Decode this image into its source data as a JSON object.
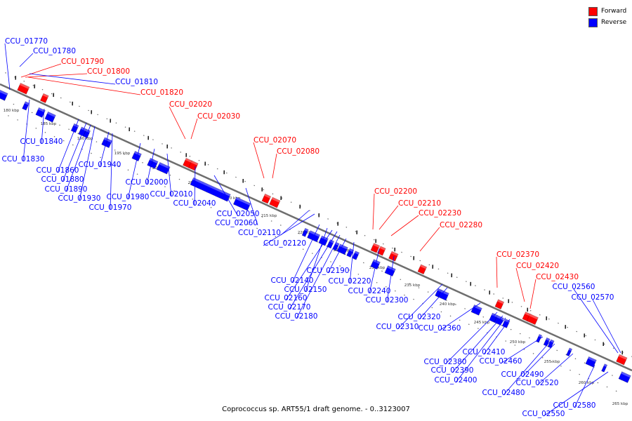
{
  "title": "Coprococcus sp. ART55/1 draft genome. - 0..3123007",
  "legend": [
    {
      "label": "Forward",
      "color": "#ff0000"
    },
    {
      "label": "Reverse",
      "color": "#0000ff"
    }
  ],
  "colors": {
    "forward": "#ff0000",
    "reverse": "#0000ff",
    "backbone": "#777777"
  },
  "scale_labels": [
    "180 kbp",
    "185 kbp",
    "190 kbp",
    "195 kbp",
    "200 kbp",
    "205 kbp",
    "210 kbp",
    "215 kbp",
    "220 kbp",
    "225 kbp",
    "230 kbp",
    "235 kbp",
    "240 kbp",
    "245 kbp",
    "250 kbp",
    "255 kbp",
    "260 kbp",
    "265 kbp"
  ],
  "forward_genes": [
    "CCU_01790",
    "CCU_01800",
    "CCU_01820",
    "CCU_02020",
    "CCU_02030",
    "CCU_02070",
    "CCU_02080",
    "CCU_02200",
    "CCU_02210",
    "CCU_02230",
    "CCU_02280",
    "CCU_02370",
    "CCU_02420",
    "CCU_02430"
  ],
  "reverse_genes": [
    "CCU_01770",
    "CCU_01780",
    "CCU_01810",
    "CCU_01830",
    "CCU_01840",
    "CCU_01860",
    "CCU_01880",
    "CCU_01890",
    "CCU_01930",
    "CCU_01940",
    "CCU_01970",
    "CCU_01980",
    "CCU_02000",
    "CCU_02010",
    "CCU_02040",
    "CCU_02050",
    "CCU_02060",
    "CCU_02110",
    "CCU_02120",
    "CCU_02140",
    "CCU_02150",
    "CCU_02160",
    "CCU_02170",
    "CCU_02180",
    "CCU_02190",
    "CCU_02220",
    "CCU_02240",
    "CCU_02300",
    "CCU_02310",
    "CCU_02320",
    "CCU_02360",
    "CCU_02380",
    "CCU_02390",
    "CCU_02400",
    "CCU_02410",
    "CCU_02460",
    "CCU_02480",
    "CCU_02490",
    "CCU_02520",
    "CCU_02550",
    "CCU_02560",
    "CCU_02570",
    "CCU_02580"
  ]
}
